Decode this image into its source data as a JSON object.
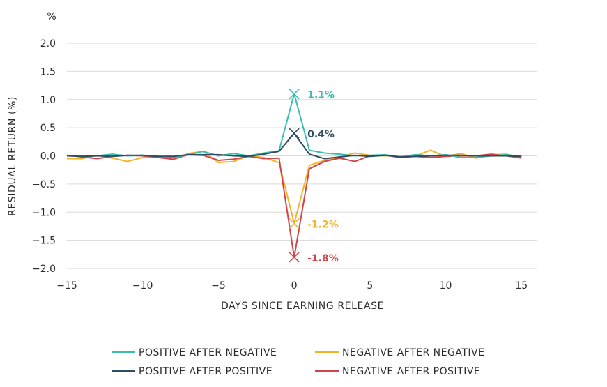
{
  "chart_data": {
    "type": "line",
    "unit_label": "%",
    "xlabel": "DAYS SINCE EARNING RELEASE",
    "ylabel": "RESIDUAL RETURN (%)",
    "xlim": [
      -15,
      16
    ],
    "ylim": [
      -2.0,
      2.0
    ],
    "x_ticks": [
      -15,
      -10,
      -5,
      0,
      5,
      10,
      15
    ],
    "x_tick_labels": [
      "−15",
      "−10",
      "−5",
      "0",
      "5",
      "10",
      "15"
    ],
    "y_ticks": [
      2.0,
      1.5,
      1.0,
      0.5,
      0.0,
      -0.5,
      -1.0,
      -1.5,
      -2.0
    ],
    "y_tick_labels": [
      "2.0",
      "1.5",
      "1.0",
      "0.5",
      "0.0",
      "−0.5",
      "−1.0",
      "−1.5",
      "−2.0"
    ],
    "grid": true,
    "legend_position": "bottom",
    "x": [
      -15,
      -14,
      -13,
      -12,
      -11,
      -10,
      -9,
      -8,
      -7,
      -6,
      -5,
      -4,
      -3,
      -2,
      -1,
      0,
      1,
      2,
      3,
      4,
      5,
      6,
      7,
      8,
      9,
      10,
      11,
      12,
      13,
      14,
      15
    ],
    "series": [
      {
        "name": "POSITIVE AFTER NEGATIVE",
        "color": "#3bbcb3",
        "values": [
          0.0,
          0.0,
          0.0,
          0.03,
          0.0,
          0.01,
          -0.01,
          -0.03,
          0.02,
          0.08,
          0.0,
          0.04,
          0.0,
          0.05,
          0.09,
          1.1,
          0.1,
          0.05,
          0.03,
          0.0,
          0.01,
          0.02,
          -0.02,
          0.02,
          0.0,
          0.02,
          -0.03,
          -0.03,
          0.0,
          0.02,
          -0.01
        ],
        "annotation": "1.1%"
      },
      {
        "name": "POSITIVE AFTER POSITIVE",
        "color": "#2d4b62",
        "values": [
          0.0,
          -0.01,
          0.0,
          -0.01,
          0.01,
          0.01,
          -0.01,
          -0.01,
          0.02,
          0.02,
          0.02,
          0.0,
          -0.01,
          0.03,
          0.08,
          0.4,
          0.03,
          -0.05,
          -0.02,
          0.01,
          -0.01,
          0.01,
          -0.02,
          -0.01,
          0.0,
          0.01,
          0.01,
          0.0,
          0.0,
          0.0,
          -0.01
        ],
        "annotation": "0.4%"
      },
      {
        "name": "NEGATIVE AFTER NEGATIVE",
        "color": "#f5b227",
        "values": [
          -0.05,
          -0.05,
          0.01,
          -0.04,
          -0.1,
          -0.03,
          0.0,
          -0.07,
          0.04,
          0.08,
          -0.12,
          -0.1,
          0.0,
          -0.03,
          -0.12,
          -1.2,
          -0.17,
          -0.08,
          -0.02,
          0.05,
          0.01,
          0.0,
          0.0,
          0.0,
          0.1,
          -0.01,
          0.04,
          -0.04,
          0.02,
          0.03,
          -0.03
        ],
        "annotation": "-1.2%"
      },
      {
        "name": "NEGATIVE AFTER POSITIVE",
        "color": "#d2444a",
        "values": [
          0.01,
          -0.02,
          -0.05,
          -0.01,
          0.01,
          0.0,
          -0.03,
          -0.06,
          0.02,
          0.01,
          -0.08,
          -0.06,
          -0.01,
          -0.05,
          -0.04,
          -1.8,
          -0.23,
          -0.1,
          -0.04,
          -0.1,
          0.0,
          0.01,
          -0.03,
          -0.01,
          -0.03,
          -0.01,
          0.0,
          0.0,
          0.03,
          0.0,
          -0.04
        ],
        "annotation": "-1.8%"
      }
    ],
    "legend": [
      {
        "label": "POSITIVE AFTER NEGATIVE",
        "color": "#3bbcb3"
      },
      {
        "label": "NEGATIVE AFTER NEGATIVE",
        "color": "#f5b227"
      },
      {
        "label": "POSITIVE AFTER POSITIVE",
        "color": "#2d4b62"
      },
      {
        "label": "NEGATIVE AFTER POSITIVE",
        "color": "#d2444a"
      }
    ],
    "colors": {
      "grid": "#d9d9d9",
      "text": "#2b2b2b"
    }
  }
}
